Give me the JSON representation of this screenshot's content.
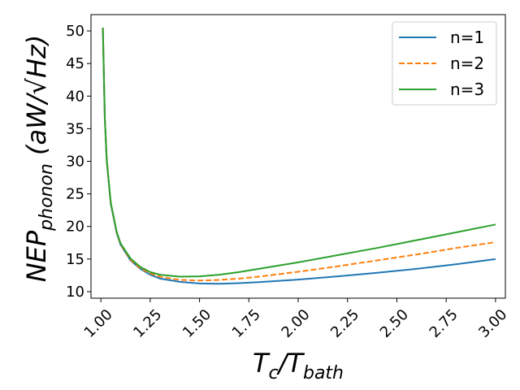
{
  "chart_data": {
    "type": "line",
    "xlabel": "T_c/T_bath",
    "ylabel": "NEP_phonon (aW/√Hz)",
    "xlim": [
      0.95,
      3.05
    ],
    "ylim": [
      9,
      52.5
    ],
    "xticks": [
      "1.00",
      "1.25",
      "1.50",
      "1.75",
      "2.00",
      "2.25",
      "2.50",
      "2.75",
      "3.00"
    ],
    "yticks": [
      "10",
      "15",
      "20",
      "25",
      "30",
      "35",
      "40",
      "45",
      "50"
    ],
    "grid": false,
    "legend_position": "top-right",
    "x": [
      1.01,
      1.02,
      1.03,
      1.05,
      1.08,
      1.1,
      1.15,
      1.2,
      1.25,
      1.3,
      1.4,
      1.5,
      1.6,
      1.7,
      1.8,
      2.0,
      2.2,
      2.4,
      2.6,
      2.8,
      3.0
    ],
    "series": [
      {
        "name": "n=1",
        "color": "#1f77b4",
        "dash": "solid",
        "values": [
          50.5,
          36.5,
          30.0,
          23.5,
          19.0,
          17.2,
          14.8,
          13.5,
          12.6,
          12.0,
          11.5,
          11.25,
          11.2,
          11.3,
          11.45,
          11.85,
          12.35,
          12.9,
          13.5,
          14.2,
          15.0
        ]
      },
      {
        "name": "n=2",
        "color": "#ff7f0e",
        "dash": "dashed",
        "values": [
          50.5,
          36.6,
          30.1,
          23.6,
          19.1,
          17.3,
          14.9,
          13.6,
          12.8,
          12.3,
          11.8,
          11.7,
          11.8,
          12.0,
          12.3,
          13.05,
          13.9,
          14.8,
          15.7,
          16.7,
          17.6
        ]
      },
      {
        "name": "n=3",
        "color": "#2ca02c",
        "dash": "solid",
        "values": [
          50.5,
          36.7,
          30.2,
          23.7,
          19.2,
          17.4,
          15.1,
          13.8,
          13.0,
          12.6,
          12.3,
          12.35,
          12.6,
          13.0,
          13.5,
          14.5,
          15.6,
          16.7,
          17.9,
          19.1,
          20.3
        ]
      }
    ]
  }
}
